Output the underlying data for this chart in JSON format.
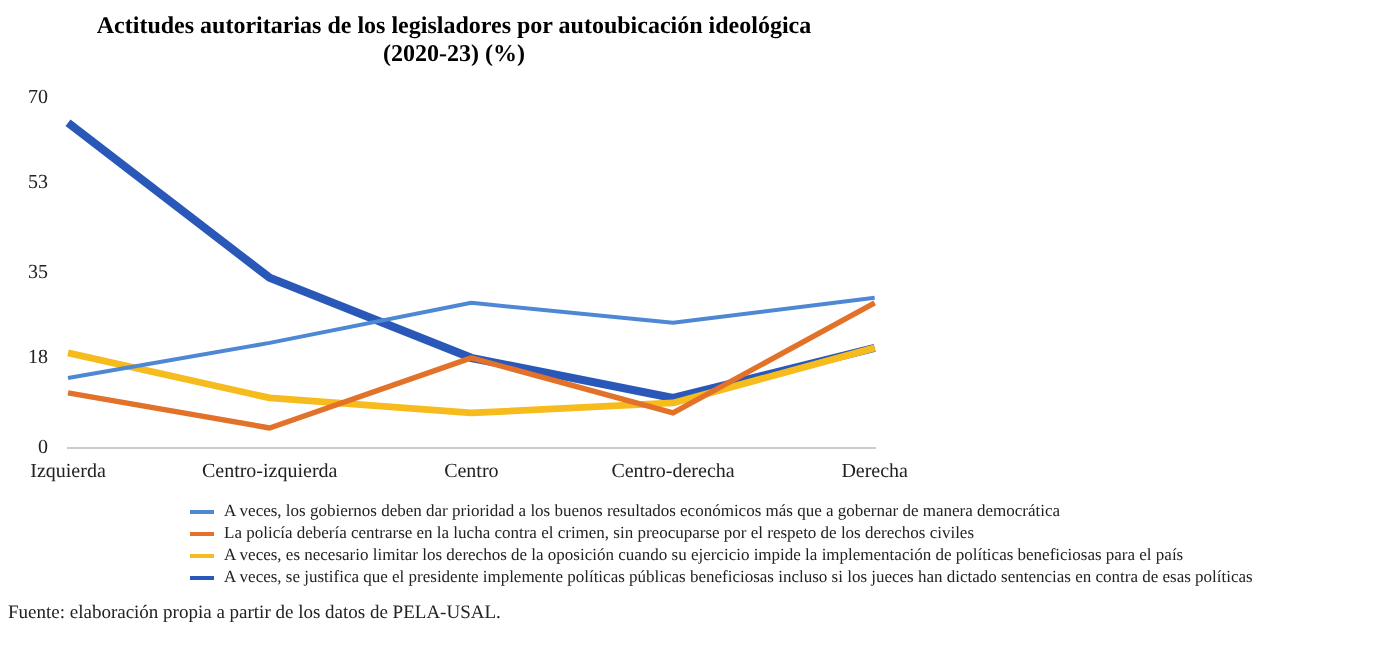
{
  "chart_data": {
    "type": "line",
    "title": [
      "Actitudes autoritarias de los legisladores por autoubicación ideológica",
      "(2020-23) (%)"
    ],
    "categories": [
      "Izquierda",
      "Centro-izquierda",
      "Centro",
      "Centro-derecha",
      "Derecha"
    ],
    "series": [
      {
        "name": "A veces, los gobiernos deben dar prioridad a los buenos resultados económicos más que a gobernar de manera democrática",
        "color": "#4e87d4",
        "values": [
          14,
          21,
          29,
          25,
          30
        ]
      },
      {
        "name": "La policía debería centrarse en la lucha contra el crimen, sin preocuparse por el respeto de los derechos civiles",
        "color": "#e2712a",
        "values": [
          11,
          4,
          18,
          7,
          29
        ]
      },
      {
        "name": "A veces, es necesario limitar los derechos de la oposición cuando su ejercicio impide la implementación de políticas beneficiosas para el país",
        "color": "#f6bb1c",
        "values": [
          19,
          10,
          7,
          9,
          20
        ]
      },
      {
        "name": "A veces, se justifica que el presidente implemente políticas públicas beneficiosas incluso si los jueces han dictado sentencias en contra de esas políticas",
        "color": "#2a58b8",
        "values": [
          65,
          34,
          18,
          10,
          20
        ]
      }
    ],
    "ylim": [
      0,
      70
    ],
    "yticks": [
      0,
      18,
      35,
      53,
      70
    ],
    "grid": false,
    "legend": "bottom",
    "marker": "none",
    "line_style": "solid",
    "annotations": [
      "Fuente: elaboración propia a partir de los datos de PELA-USAL."
    ]
  }
}
